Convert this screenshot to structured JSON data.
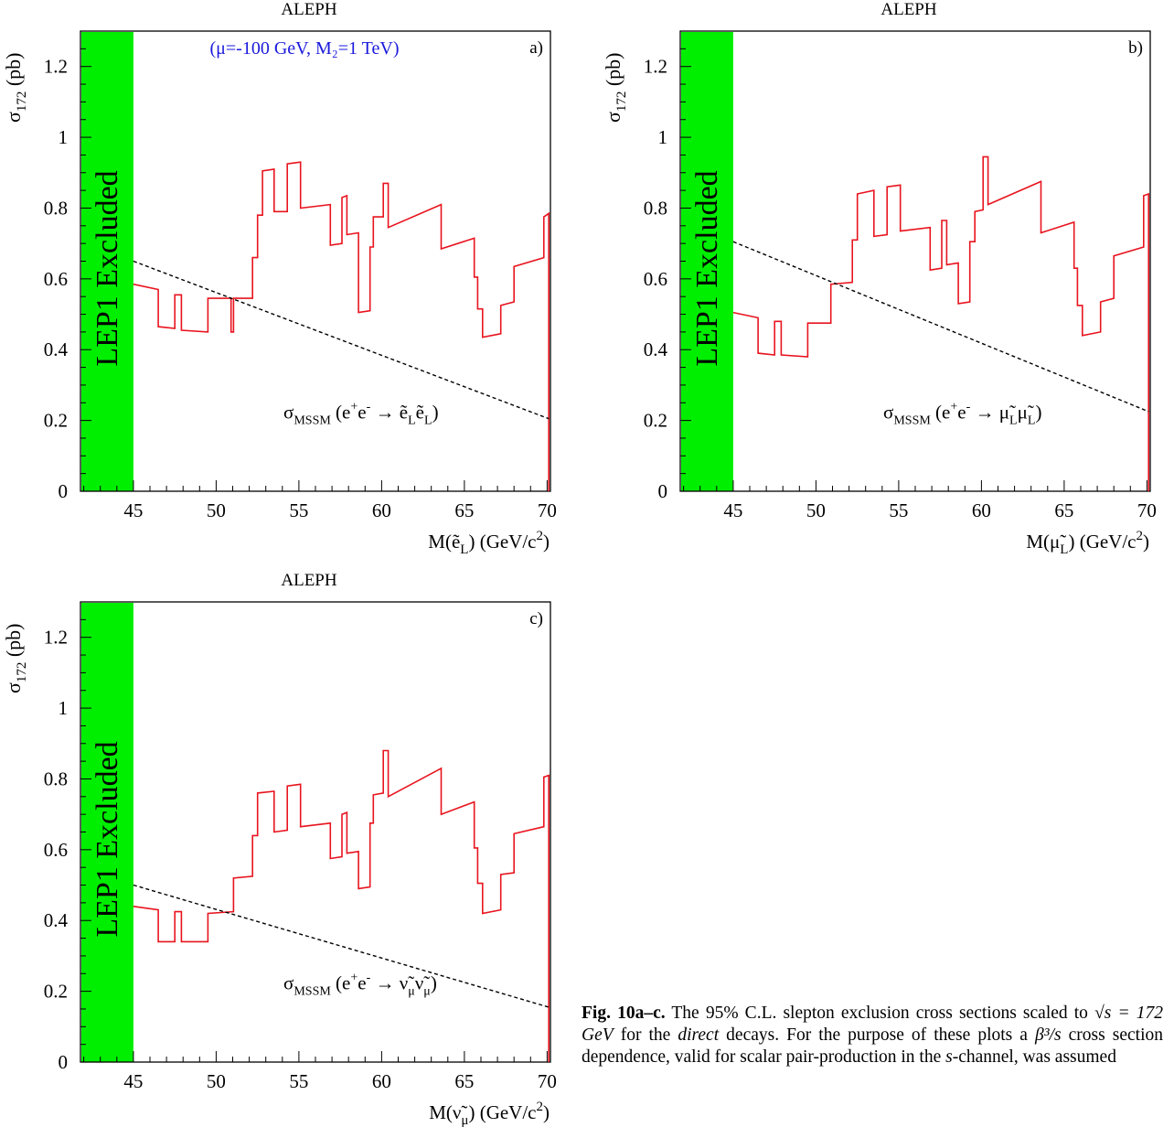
{
  "chart_data": [
    {
      "type": "line",
      "panel": "a)",
      "title": "ALEPH",
      "annotation": "(μ=-100 GeV, M₂=1 TeV)",
      "ylabel": {
        "main": "σ",
        "sub": "172",
        "unit": " (pb)"
      },
      "xlabel": {
        "pre": "M(ẽ",
        "sub": "L",
        "post": ") (GeV/c",
        "sup": "2",
        "end": ")"
      },
      "excluded_label": "LEP1 Excluded",
      "excluded_range": [
        41.8,
        45.0
      ],
      "xlim": [
        41.8,
        70.2
      ],
      "ylim": [
        0,
        1.3
      ],
      "xticks": [
        45,
        50,
        55,
        60,
        65,
        70
      ],
      "yticks": [
        0,
        0.2,
        0.4,
        0.6,
        0.8,
        1,
        1.2
      ],
      "grid": false,
      "theory_label": {
        "sym": "σ",
        "sub": "MSSM",
        "text": " (e",
        "sup1": "+",
        "mid": "e",
        "sup2": "-",
        "arrow": " → ",
        "p1": "ẽ",
        "s1": "L",
        "p2": "ẽ",
        "s2": "L",
        "end": ")"
      },
      "series": [
        {
          "name": "95% C.L. limit",
          "color": "#e8141e",
          "style": "step",
          "points": [
            [
              45.0,
              0.585
            ],
            [
              46.5,
              0.57
            ],
            [
              46.5,
              0.465
            ],
            [
              47.5,
              0.46
            ],
            [
              47.5,
              0.555
            ],
            [
              47.9,
              0.555
            ],
            [
              47.9,
              0.455
            ],
            [
              49.5,
              0.45
            ],
            [
              49.5,
              0.545
            ],
            [
              50.9,
              0.545
            ],
            [
              50.9,
              0.45
            ],
            [
              51.05,
              0.45
            ],
            [
              51.05,
              0.545
            ],
            [
              52.2,
              0.545
            ],
            [
              52.2,
              0.66
            ],
            [
              52.5,
              0.66
            ],
            [
              52.5,
              0.78
            ],
            [
              52.8,
              0.78
            ],
            [
              52.8,
              0.905
            ],
            [
              53.5,
              0.91
            ],
            [
              53.5,
              0.79
            ],
            [
              54.3,
              0.79
            ],
            [
              54.3,
              0.925
            ],
            [
              55.1,
              0.93
            ],
            [
              55.1,
              0.8
            ],
            [
              56.9,
              0.81
            ],
            [
              56.9,
              0.695
            ],
            [
              57.6,
              0.7
            ],
            [
              57.6,
              0.83
            ],
            [
              57.9,
              0.835
            ],
            [
              57.9,
              0.725
            ],
            [
              58.6,
              0.73
            ],
            [
              58.6,
              0.505
            ],
            [
              59.3,
              0.51
            ],
            [
              59.3,
              0.69
            ],
            [
              59.5,
              0.69
            ],
            [
              59.5,
              0.775
            ],
            [
              60.1,
              0.775
            ],
            [
              60.1,
              0.87
            ],
            [
              60.4,
              0.87
            ],
            [
              60.4,
              0.745
            ],
            [
              63.6,
              0.81
            ],
            [
              63.6,
              0.685
            ],
            [
              65.6,
              0.715
            ],
            [
              65.6,
              0.605
            ],
            [
              65.8,
              0.605
            ],
            [
              65.8,
              0.515
            ],
            [
              66.1,
              0.515
            ],
            [
              66.1,
              0.435
            ],
            [
              67.2,
              0.445
            ],
            [
              67.2,
              0.525
            ],
            [
              68.0,
              0.535
            ],
            [
              68.0,
              0.635
            ],
            [
              69.8,
              0.66
            ],
            [
              69.8,
              0.775
            ],
            [
              70.1,
              0.785
            ],
            [
              70.1,
              0.0
            ]
          ]
        },
        {
          "name": "σ_MSSM",
          "color": "#000000",
          "style": "dashed",
          "points": [
            [
              45.0,
              0.65
            ],
            [
              70.1,
              0.205
            ]
          ]
        }
      ]
    },
    {
      "type": "line",
      "panel": "b)",
      "title": "ALEPH",
      "annotation": "",
      "ylabel": {
        "main": "σ",
        "sub": "172",
        "unit": " (pb)"
      },
      "xlabel": {
        "pre": "M(μ̃",
        "sub": "L",
        "post": ") (GeV/c",
        "sup": "2",
        "end": ")"
      },
      "excluded_label": "LEP1 Excluded",
      "excluded_range": [
        41.8,
        45.0
      ],
      "xlim": [
        41.8,
        70.2
      ],
      "ylim": [
        0,
        1.3
      ],
      "xticks": [
        45,
        50,
        55,
        60,
        65,
        70
      ],
      "yticks": [
        0,
        0.2,
        0.4,
        0.6,
        0.8,
        1,
        1.2
      ],
      "grid": false,
      "theory_label": {
        "sym": "σ",
        "sub": "MSSM",
        "text": " (e",
        "sup1": "+",
        "mid": "e",
        "sup2": "-",
        "arrow": " → ",
        "p1": "μ̃",
        "s1": "L",
        "p2": "μ̃",
        "s2": "L",
        "end": ")"
      },
      "series": [
        {
          "name": "95% C.L. limit",
          "color": "#e8141e",
          "style": "step",
          "points": [
            [
              45.0,
              0.505
            ],
            [
              46.5,
              0.49
            ],
            [
              46.5,
              0.39
            ],
            [
              47.5,
              0.385
            ],
            [
              47.5,
              0.48
            ],
            [
              47.9,
              0.48
            ],
            [
              47.9,
              0.385
            ],
            [
              49.5,
              0.38
            ],
            [
              49.5,
              0.475
            ],
            [
              50.9,
              0.475
            ],
            [
              50.9,
              0.585
            ],
            [
              52.2,
              0.59
            ],
            [
              52.2,
              0.71
            ],
            [
              52.5,
              0.71
            ],
            [
              52.5,
              0.84
            ],
            [
              53.5,
              0.85
            ],
            [
              53.5,
              0.72
            ],
            [
              54.3,
              0.725
            ],
            [
              54.3,
              0.86
            ],
            [
              55.1,
              0.865
            ],
            [
              55.1,
              0.735
            ],
            [
              56.9,
              0.745
            ],
            [
              56.9,
              0.625
            ],
            [
              57.6,
              0.63
            ],
            [
              57.6,
              0.765
            ],
            [
              57.9,
              0.765
            ],
            [
              57.9,
              0.64
            ],
            [
              58.6,
              0.645
            ],
            [
              58.6,
              0.53
            ],
            [
              59.3,
              0.535
            ],
            [
              59.3,
              0.705
            ],
            [
              59.6,
              0.705
            ],
            [
              59.6,
              0.79
            ],
            [
              60.1,
              0.795
            ],
            [
              60.1,
              0.945
            ],
            [
              60.4,
              0.945
            ],
            [
              60.4,
              0.81
            ],
            [
              63.6,
              0.875
            ],
            [
              63.6,
              0.73
            ],
            [
              65.6,
              0.76
            ],
            [
              65.6,
              0.63
            ],
            [
              65.8,
              0.63
            ],
            [
              65.8,
              0.525
            ],
            [
              66.1,
              0.525
            ],
            [
              66.1,
              0.44
            ],
            [
              67.2,
              0.45
            ],
            [
              67.2,
              0.535
            ],
            [
              68.0,
              0.545
            ],
            [
              68.0,
              0.665
            ],
            [
              69.8,
              0.69
            ],
            [
              69.8,
              0.835
            ],
            [
              70.1,
              0.84
            ],
            [
              70.1,
              0.0
            ]
          ]
        },
        {
          "name": "σ_MSSM",
          "color": "#000000",
          "style": "dashed",
          "points": [
            [
              45.0,
              0.705
            ],
            [
              70.1,
              0.225
            ]
          ]
        }
      ]
    },
    {
      "type": "line",
      "panel": "c)",
      "title": "ALEPH",
      "annotation": "",
      "ylabel": {
        "main": "σ",
        "sub": "172",
        "unit": " (pb)"
      },
      "xlabel": {
        "pre": "M(ν̃",
        "sub": "μ",
        "post": ") (GeV/c",
        "sup": "2",
        "end": ")"
      },
      "excluded_label": "LEP1 Excluded",
      "excluded_range": [
        41.8,
        45.0
      ],
      "xlim": [
        41.8,
        70.2
      ],
      "ylim": [
        0,
        1.3
      ],
      "xticks": [
        45,
        50,
        55,
        60,
        65,
        70
      ],
      "yticks": [
        0,
        0.2,
        0.4,
        0.6,
        0.8,
        1,
        1.2
      ],
      "grid": false,
      "theory_label": {
        "sym": "σ",
        "sub": "MSSM",
        "text": " (e",
        "sup1": "+",
        "mid": "e",
        "sup2": "-",
        "arrow": " → ",
        "p1": "ν̃",
        "s1": "μ",
        "p2": "ν̃",
        "s2": "μ",
        "end": ")"
      },
      "series": [
        {
          "name": "95% C.L. limit",
          "color": "#e8141e",
          "style": "step",
          "points": [
            [
              45.0,
              0.44
            ],
            [
              46.5,
              0.43
            ],
            [
              46.5,
              0.34
            ],
            [
              47.5,
              0.34
            ],
            [
              47.5,
              0.425
            ],
            [
              47.9,
              0.425
            ],
            [
              47.9,
              0.34
            ],
            [
              49.5,
              0.34
            ],
            [
              49.5,
              0.42
            ],
            [
              51.05,
              0.425
            ],
            [
              51.05,
              0.52
            ],
            [
              52.2,
              0.525
            ],
            [
              52.2,
              0.64
            ],
            [
              52.5,
              0.64
            ],
            [
              52.5,
              0.76
            ],
            [
              53.5,
              0.765
            ],
            [
              53.5,
              0.65
            ],
            [
              54.3,
              0.655
            ],
            [
              54.3,
              0.78
            ],
            [
              55.1,
              0.785
            ],
            [
              55.1,
              0.665
            ],
            [
              56.9,
              0.675
            ],
            [
              56.9,
              0.575
            ],
            [
              57.6,
              0.58
            ],
            [
              57.6,
              0.7
            ],
            [
              57.9,
              0.705
            ],
            [
              57.9,
              0.59
            ],
            [
              58.6,
              0.595
            ],
            [
              58.6,
              0.49
            ],
            [
              59.3,
              0.495
            ],
            [
              59.3,
              0.675
            ],
            [
              59.5,
              0.675
            ],
            [
              59.5,
              0.755
            ],
            [
              60.1,
              0.76
            ],
            [
              60.1,
              0.88
            ],
            [
              60.4,
              0.88
            ],
            [
              60.4,
              0.75
            ],
            [
              63.6,
              0.83
            ],
            [
              63.6,
              0.7
            ],
            [
              65.6,
              0.735
            ],
            [
              65.6,
              0.605
            ],
            [
              65.8,
              0.605
            ],
            [
              65.8,
              0.505
            ],
            [
              66.1,
              0.505
            ],
            [
              66.1,
              0.42
            ],
            [
              67.2,
              0.43
            ],
            [
              67.2,
              0.53
            ],
            [
              68.0,
              0.535
            ],
            [
              68.0,
              0.645
            ],
            [
              69.8,
              0.665
            ],
            [
              69.8,
              0.805
            ],
            [
              70.1,
              0.81
            ],
            [
              70.1,
              0.0
            ]
          ]
        },
        {
          "name": "σ_MSSM",
          "color": "#000000",
          "style": "dashed",
          "points": [
            [
              45.0,
              0.5
            ],
            [
              70.1,
              0.155
            ]
          ]
        }
      ]
    }
  ],
  "colors": {
    "excluded_band": "#00ee00",
    "limit_line": "#e8141e",
    "annotation": "#1a1adc"
  },
  "caption": {
    "label": "Fig. 10a–c.",
    "part1": " The 95% C.L. slepton exclusion cross sections scaled to ",
    "sqrt_expr": "√s = 172 GeV",
    "part2": " for the ",
    "direct": "direct",
    "part3": " decays. For the purpose of these plots a ",
    "beta_expr": "β³/s",
    "part4": " cross section dependence, valid for scalar pair-production in the ",
    "s_var": "s",
    "part5": "-channel, was assumed"
  }
}
